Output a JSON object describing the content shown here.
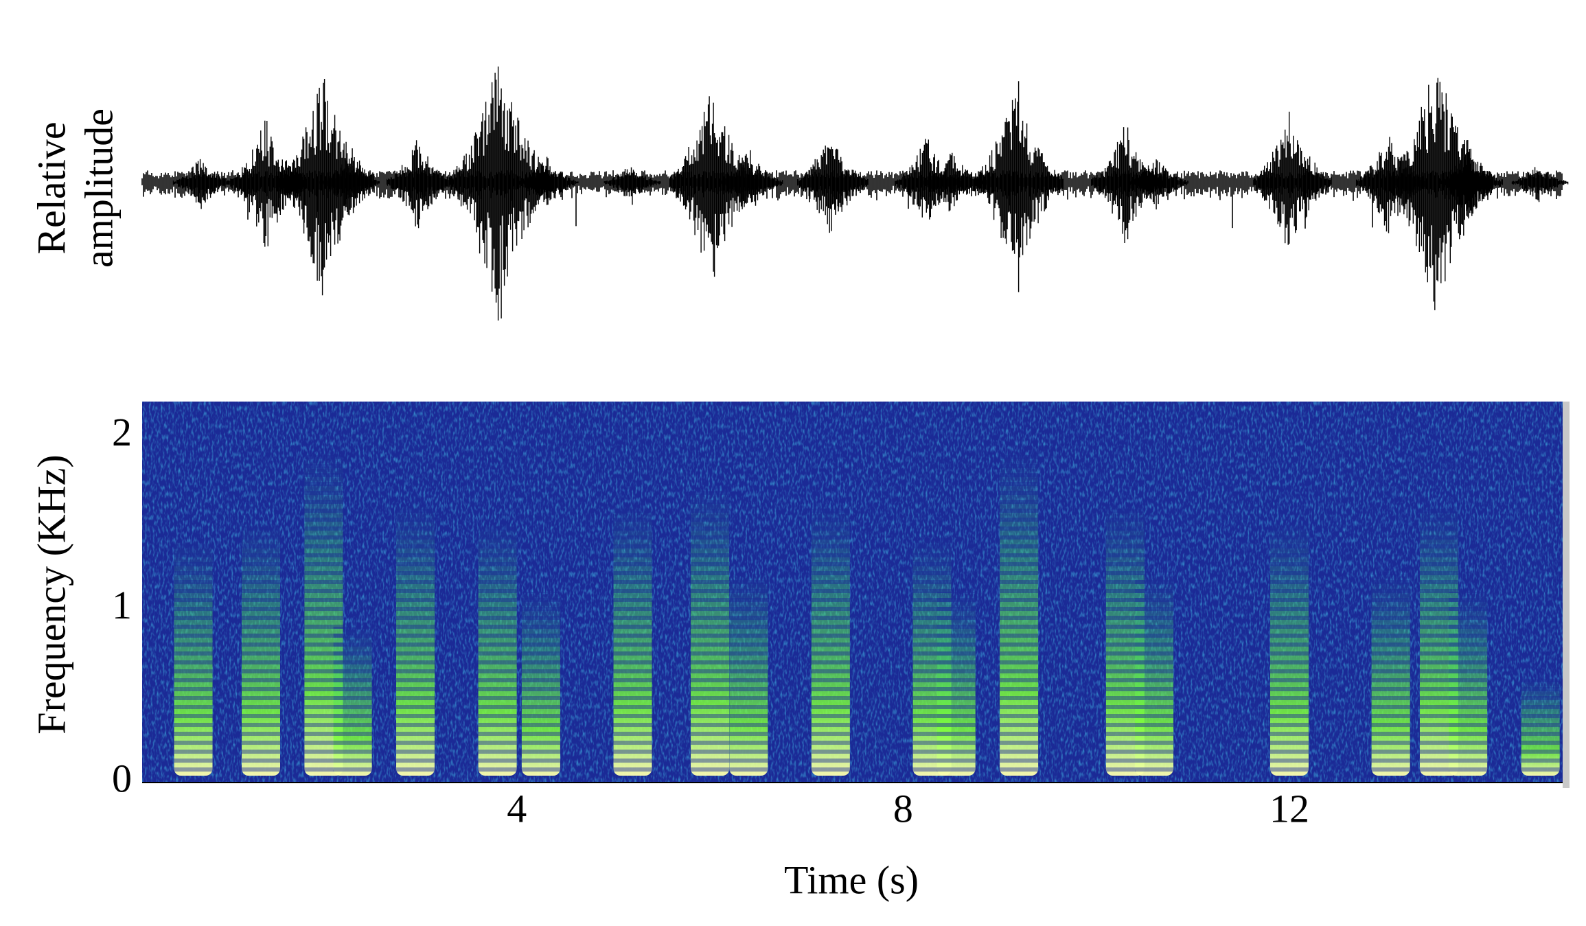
{
  "chart_data": [
    {
      "type": "waveform",
      "ylabel": [
        "Relative",
        "amplitude"
      ],
      "ylim": [
        -1,
        1
      ],
      "series": [
        {
          "color": "#000000",
          "x": [
            0.75,
            1.43,
            2.03,
            2.27,
            3.0,
            3.85,
            4.33,
            5.2,
            6.05,
            6.43,
            7.27,
            8.27,
            8.54,
            9.2,
            10.33,
            10.65,
            12.03,
            13.06,
            13.57,
            13.88,
            14.6
          ],
          "values": [
            0.2,
            0.5,
            0.85,
            0.2,
            0.35,
            1.0,
            0.2,
            0.15,
            0.75,
            0.25,
            0.4,
            0.35,
            0.25,
            0.75,
            0.45,
            0.2,
            0.55,
            0.4,
            1.0,
            0.3,
            0.15
          ]
        }
      ]
    },
    {
      "type": "spectrogram",
      "xlabel": "Time (s)",
      "ylabel": "Frequency (KHz)",
      "xlim": [
        0.12,
        14.83
      ],
      "ylim": [
        0,
        2.2
      ],
      "xticks": [
        4,
        8,
        12
      ],
      "yticks": [
        0,
        1,
        2
      ],
      "color": "#7dff3a",
      "background": "#1b2a96",
      "series": [
        {
          "x": [
            0.65,
            1.35,
            2.0,
            2.3,
            2.95,
            3.8,
            4.25,
            5.2,
            6.0,
            6.4,
            7.25,
            8.3,
            8.55,
            9.2,
            10.3,
            10.6,
            12.0,
            13.05,
            13.55,
            13.85,
            14.6
          ],
          "values": [
            1.4,
            1.5,
            1.9,
            0.9,
            1.6,
            1.5,
            1.1,
            1.6,
            1.7,
            1.2,
            1.6,
            1.4,
            1.1,
            1.9,
            1.6,
            1.2,
            1.5,
            1.2,
            1.6,
            1.1,
            0.6
          ]
        }
      ]
    }
  ]
}
